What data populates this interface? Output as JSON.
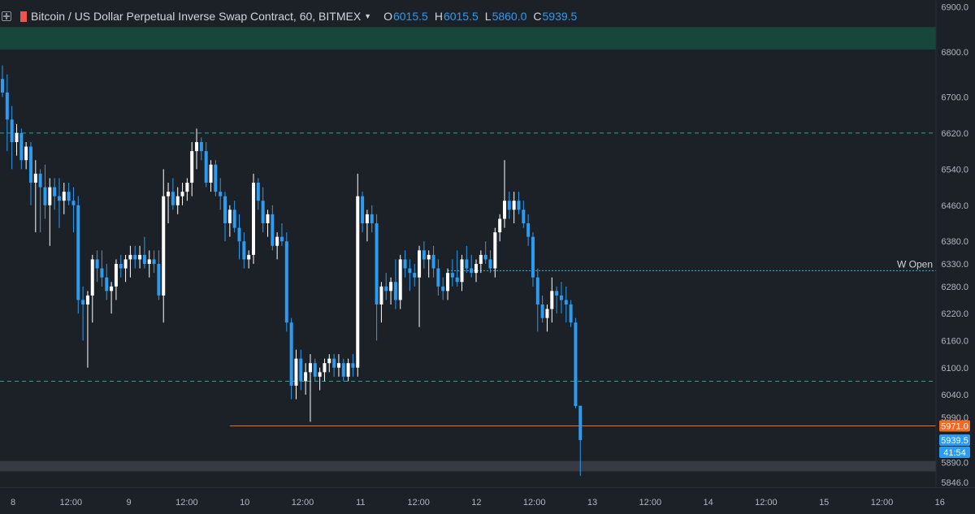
{
  "header": {
    "symbol": "Bitcoin / US Dollar Perpetual Inverse Swap Contract, 60, BITMEX",
    "ohlc": [
      {
        "key": "O",
        "value": "6015.5"
      },
      {
        "key": "H",
        "value": "6015.5"
      },
      {
        "key": "L",
        "value": "5860.0"
      },
      {
        "key": "C",
        "value": "5939.5"
      }
    ]
  },
  "colors": {
    "background": "#1c2127",
    "up": "#ffffff",
    "down": "#2c9bf0",
    "zone_top": "#17473a",
    "zone_bottom": "#363a42",
    "support_line": "#26a69a",
    "weekly_open": "#26c6da",
    "orange_line": "#f06a26",
    "price_label_last": "#2c9bf0",
    "price_label_orange": "#f06a26",
    "axis_text": "#b2b5be"
  },
  "chart_data": {
    "type": "candlestick",
    "price_axis": {
      "range": [
        5835,
        6915
      ],
      "ticks": [
        "6900.0",
        "6800.0",
        "6700.0",
        "6620.0",
        "6540.0",
        "6460.0",
        "6380.0",
        "6330.0",
        "6280.0",
        "6220.0",
        "6160.0",
        "6100.0",
        "6040.0",
        "5990.0",
        "5890.0",
        "5846.0"
      ]
    },
    "time_axis": {
      "ticks": [
        "8",
        "12:00",
        "9",
        "12:00",
        "10",
        "12:00",
        "11",
        "12:00",
        "12",
        "12:00",
        "13",
        "12:00",
        "14",
        "12:00",
        "15",
        "12:00",
        "16"
      ]
    },
    "levels": [
      {
        "price": 6620,
        "style": "dashed"
      },
      {
        "price": 6070,
        "style": "dashed"
      },
      {
        "price": 6315,
        "style": "dotted",
        "label": "W Open"
      },
      {
        "price": 5971,
        "style": "solid"
      }
    ],
    "zones": [
      {
        "from": 6805,
        "to": 6855
      },
      {
        "from": 5870,
        "to": 5893
      }
    ],
    "price_labels": [
      {
        "price": 5971,
        "text": "5971.0"
      },
      {
        "price": 5939.5,
        "text": "5939.5"
      },
      {
        "text": "41:54"
      }
    ],
    "candles": [
      [
        6740,
        6770,
        6700,
        6710
      ],
      [
        6710,
        6750,
        6580,
        6650
      ],
      [
        6650,
        6680,
        6540,
        6600
      ],
      [
        6600,
        6640,
        6570,
        6620
      ],
      [
        6620,
        6630,
        6540,
        6560
      ],
      [
        6560,
        6600,
        6540,
        6590
      ],
      [
        6590,
        6600,
        6460,
        6510
      ],
      [
        6510,
        6560,
        6400,
        6530
      ],
      [
        6530,
        6540,
        6400,
        6500
      ],
      [
        6500,
        6550,
        6430,
        6460
      ],
      [
        6460,
        6520,
        6370,
        6500
      ],
      [
        6500,
        6520,
        6450,
        6480
      ],
      [
        6480,
        6520,
        6410,
        6470
      ],
      [
        6470,
        6510,
        6440,
        6490
      ],
      [
        6490,
        6510,
        6460,
        6470
      ],
      [
        6470,
        6500,
        6400,
        6460
      ],
      [
        6460,
        6480,
        6220,
        6250
      ],
      [
        6250,
        6280,
        6160,
        6240
      ],
      [
        6240,
        6270,
        6100,
        6260
      ],
      [
        6260,
        6350,
        6200,
        6340
      ],
      [
        6340,
        6360,
        6290,
        6320
      ],
      [
        6320,
        6360,
        6280,
        6300
      ],
      [
        6300,
        6330,
        6250,
        6270
      ],
      [
        6270,
        6290,
        6220,
        6280
      ],
      [
        6280,
        6340,
        6250,
        6330
      ],
      [
        6330,
        6350,
        6300,
        6320
      ],
      [
        6320,
        6350,
        6290,
        6340
      ],
      [
        6340,
        6370,
        6300,
        6350
      ],
      [
        6350,
        6370,
        6320,
        6340
      ],
      [
        6340,
        6370,
        6320,
        6350
      ],
      [
        6350,
        6390,
        6320,
        6330
      ],
      [
        6330,
        6360,
        6300,
        6340
      ],
      [
        6340,
        6360,
        6310,
        6330
      ],
      [
        6330,
        6360,
        6250,
        6260
      ],
      [
        6260,
        6540,
        6200,
        6480
      ],
      [
        6480,
        6510,
        6420,
        6490
      ],
      [
        6490,
        6520,
        6450,
        6460
      ],
      [
        6460,
        6500,
        6440,
        6480
      ],
      [
        6480,
        6510,
        6460,
        6490
      ],
      [
        6490,
        6520,
        6470,
        6510
      ],
      [
        6510,
        6600,
        6480,
        6580
      ],
      [
        6580,
        6630,
        6540,
        6600
      ],
      [
        6600,
        6610,
        6560,
        6580
      ],
      [
        6580,
        6600,
        6500,
        6510
      ],
      [
        6510,
        6560,
        6490,
        6550
      ],
      [
        6550,
        6560,
        6480,
        6490
      ],
      [
        6490,
        6520,
        6450,
        6480
      ],
      [
        6480,
        6490,
        6380,
        6420
      ],
      [
        6420,
        6460,
        6390,
        6450
      ],
      [
        6450,
        6470,
        6400,
        6410
      ],
      [
        6410,
        6440,
        6340,
        6380
      ],
      [
        6380,
        6400,
        6320,
        6340
      ],
      [
        6340,
        6360,
        6320,
        6350
      ],
      [
        6350,
        6530,
        6330,
        6510
      ],
      [
        6510,
        6520,
        6450,
        6470
      ],
      [
        6470,
        6500,
        6400,
        6420
      ],
      [
        6420,
        6450,
        6390,
        6440
      ],
      [
        6440,
        6460,
        6360,
        6370
      ],
      [
        6370,
        6400,
        6340,
        6390
      ],
      [
        6390,
        6420,
        6370,
        6380
      ],
      [
        6380,
        6400,
        6180,
        6200
      ],
      [
        6200,
        6210,
        6030,
        6060
      ],
      [
        6060,
        6140,
        6030,
        6120
      ],
      [
        6120,
        6140,
        6050,
        6070
      ],
      [
        6070,
        6110,
        6040,
        6090
      ],
      [
        6090,
        6130,
        5980,
        6110
      ],
      [
        6110,
        6120,
        6070,
        6080
      ],
      [
        6080,
        6100,
        6050,
        6090
      ],
      [
        6090,
        6120,
        6070,
        6110
      ],
      [
        6110,
        6130,
        6090,
        6120
      ],
      [
        6120,
        6130,
        6080,
        6100
      ],
      [
        6100,
        6130,
        6080,
        6110
      ],
      [
        6110,
        6120,
        6070,
        6080
      ],
      [
        6080,
        6120,
        6070,
        6110
      ],
      [
        6110,
        6130,
        6080,
        6100
      ],
      [
        6100,
        6530,
        6080,
        6480
      ],
      [
        6480,
        6490,
        6400,
        6420
      ],
      [
        6420,
        6450,
        6380,
        6440
      ],
      [
        6440,
        6460,
        6400,
        6420
      ],
      [
        6420,
        6440,
        6160,
        6240
      ],
      [
        6240,
        6290,
        6200,
        6280
      ],
      [
        6280,
        6310,
        6250,
        6270
      ],
      [
        6270,
        6300,
        6240,
        6290
      ],
      [
        6290,
        6340,
        6230,
        6250
      ],
      [
        6250,
        6350,
        6230,
        6340
      ],
      [
        6340,
        6360,
        6300,
        6320
      ],
      [
        6320,
        6340,
        6270,
        6310
      ],
      [
        6310,
        6330,
        6280,
        6300
      ],
      [
        6300,
        6370,
        6190,
        6360
      ],
      [
        6360,
        6380,
        6320,
        6340
      ],
      [
        6340,
        6360,
        6300,
        6350
      ],
      [
        6350,
        6370,
        6300,
        6320
      ],
      [
        6320,
        6340,
        6260,
        6280
      ],
      [
        6280,
        6300,
        6250,
        6270
      ],
      [
        6270,
        6320,
        6250,
        6310
      ],
      [
        6310,
        6340,
        6280,
        6300
      ],
      [
        6300,
        6360,
        6280,
        6290
      ],
      [
        6290,
        6350,
        6270,
        6340
      ],
      [
        6340,
        6370,
        6310,
        6320
      ],
      [
        6320,
        6350,
        6300,
        6310
      ],
      [
        6310,
        6340,
        6290,
        6330
      ],
      [
        6330,
        6360,
        6310,
        6350
      ],
      [
        6350,
        6380,
        6330,
        6340
      ],
      [
        6340,
        6360,
        6310,
        6320
      ],
      [
        6320,
        6410,
        6300,
        6400
      ],
      [
        6400,
        6440,
        6380,
        6430
      ],
      [
        6430,
        6560,
        6410,
        6470
      ],
      [
        6470,
        6490,
        6430,
        6450
      ],
      [
        6450,
        6490,
        6420,
        6470
      ],
      [
        6470,
        6490,
        6440,
        6450
      ],
      [
        6450,
        6470,
        6410,
        6420
      ],
      [
        6420,
        6440,
        6370,
        6390
      ],
      [
        6390,
        6400,
        6280,
        6300
      ],
      [
        6300,
        6320,
        6180,
        6240
      ],
      [
        6240,
        6260,
        6200,
        6210
      ],
      [
        6210,
        6240,
        6180,
        6230
      ],
      [
        6230,
        6300,
        6200,
        6270
      ],
      [
        6270,
        6280,
        6220,
        6260
      ],
      [
        6260,
        6290,
        6220,
        6250
      ],
      [
        6250,
        6280,
        6200,
        6240
      ],
      [
        6240,
        6250,
        6190,
        6200
      ],
      [
        6200,
        6210,
        6010,
        6015
      ],
      [
        6015.5,
        6015.5,
        5860,
        5939.5
      ]
    ]
  }
}
